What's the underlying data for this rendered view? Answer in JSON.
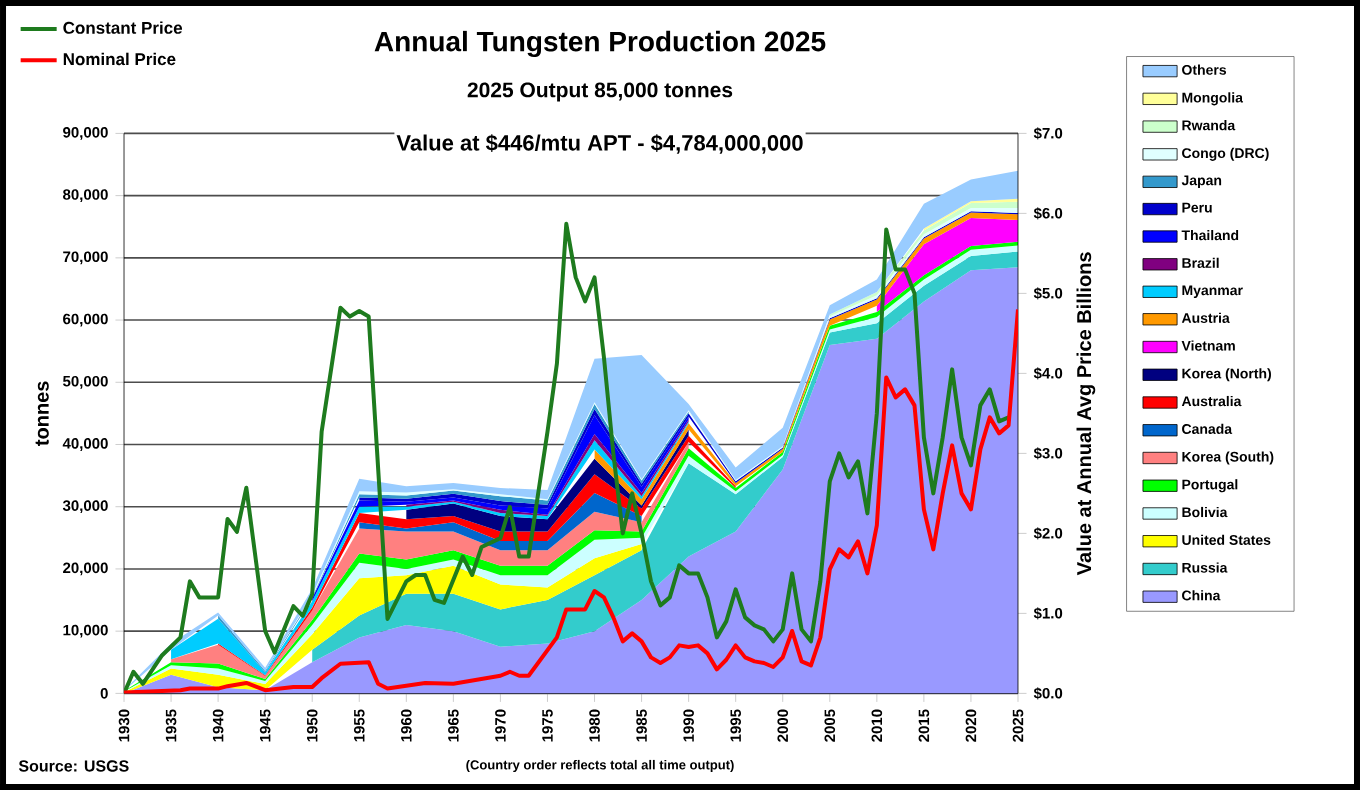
{
  "chart_data": {
    "type": "area",
    "stacked": true,
    "title": "Annual Tungsten Production 2025",
    "subtitle": "2025 Output 85,000 tonnes",
    "ylabel": "tonnes",
    "y2label": "Value at Annual Avg Price     Billions",
    "annotations": [
      "Value at $446/mtu APT  -  $4,784,000,000",
      "Source: USGS",
      "(Country order reflects total all time output)"
    ],
    "x": [
      1930,
      1935,
      1940,
      1945,
      1950,
      1955,
      1960,
      1965,
      1970,
      1975,
      1980,
      1985,
      1990,
      1995,
      2000,
      2005,
      2010,
      2015,
      2020,
      2025
    ],
    "xlim": [
      1930,
      2025
    ],
    "xticks": [
      1930,
      1935,
      1940,
      1945,
      1950,
      1955,
      1960,
      1965,
      1970,
      1975,
      1980,
      1985,
      1990,
      1995,
      2000,
      2005,
      2010,
      2015,
      2020,
      2025
    ],
    "ylim": [
      0,
      90000
    ],
    "yticks": [
      {
        "value": 0,
        "label": "0"
      },
      {
        "value": 10000,
        "label": "10,000"
      },
      {
        "value": 20000,
        "label": "20,000"
      },
      {
        "value": 30000,
        "label": "30,000"
      },
      {
        "value": 40000,
        "label": "40,000"
      },
      {
        "value": 50000,
        "label": "50,000"
      },
      {
        "value": 60000,
        "label": "60,000"
      },
      {
        "value": 70000,
        "label": "70,000"
      },
      {
        "value": 80000,
        "label": "80,000"
      },
      {
        "value": 90000,
        "label": "90,000"
      }
    ],
    "y2lim": [
      0,
      7
    ],
    "y2ticks": [
      {
        "value": 0,
        "label": "$0.0"
      },
      {
        "value": 1,
        "label": "$1.0"
      },
      {
        "value": 2,
        "label": "$2.0"
      },
      {
        "value": 3,
        "label": "$3.0"
      },
      {
        "value": 4,
        "label": "$4.0"
      },
      {
        "value": 5,
        "label": "$5.0"
      },
      {
        "value": 6,
        "label": "$6.0"
      },
      {
        "value": 7,
        "label": "$7.0"
      }
    ],
    "grid": "y",
    "legend": "right",
    "series": [
      {
        "name": "China",
        "color": "#9999ff",
        "values": [
          0,
          3000,
          1000,
          500,
          5000,
          9000,
          11000,
          10000,
          7500,
          8000,
          10000,
          15000,
          22000,
          26000,
          36000,
          56000,
          57000,
          63000,
          68000,
          68500
        ]
      },
      {
        "name": "Russia",
        "color": "#33cccc",
        "values": [
          null,
          null,
          null,
          null,
          2000,
          3500,
          5000,
          6000,
          6000,
          7000,
          9000,
          8000,
          15000,
          6000,
          2000,
          2000,
          2500,
          2500,
          2300,
          2500
        ]
      },
      {
        "name": "United States",
        "color": "#ffff00",
        "values": [
          200,
          1000,
          2000,
          1000,
          2500,
          6000,
          3000,
          4500,
          4000,
          2000,
          2700,
          1000,
          null,
          null,
          null,
          null,
          null,
          null,
          null,
          null
        ]
      },
      {
        "name": "Bolivia",
        "color": "#ccffff",
        "values": [
          100,
          500,
          1000,
          500,
          1500,
          2500,
          1000,
          1000,
          1500,
          2000,
          3000,
          1000,
          1200,
          500,
          300,
          500,
          1000,
          1000,
          1000,
          1000
        ]
      },
      {
        "name": "Portugal",
        "color": "#00ff00",
        "values": [
          100,
          500,
          800,
          300,
          800,
          1500,
          1500,
          1500,
          1500,
          1500,
          1500,
          1000,
          1200,
          500,
          500,
          600,
          800,
          700,
          600,
          600
        ]
      },
      {
        "name": "Korea (South)",
        "color": "#ff8080",
        "values": [
          null,
          500,
          3000,
          500,
          1500,
          4000,
          4500,
          3000,
          2500,
          2500,
          3000,
          1500,
          1000,
          null,
          null,
          null,
          null,
          null,
          null,
          null
        ]
      },
      {
        "name": "Canada",
        "color": "#0066cc",
        "values": [
          null,
          null,
          null,
          null,
          null,
          1000,
          500,
          1500,
          1500,
          1500,
          3000,
          1000,
          null,
          null,
          null,
          null,
          null,
          null,
          null,
          null
        ]
      },
      {
        "name": "Australia",
        "color": "#ff0000",
        "values": [
          null,
          null,
          200,
          100,
          500,
          1500,
          1500,
          1000,
          1500,
          1500,
          3000,
          1200,
          1000,
          300,
          null,
          null,
          null,
          null,
          null,
          null
        ]
      },
      {
        "name": "Korea (North)",
        "color": "#000080",
        "values": [
          null,
          null,
          null,
          null,
          null,
          null,
          1500,
          2000,
          2500,
          2000,
          2500,
          500,
          1000,
          null,
          null,
          null,
          null,
          null,
          null,
          null
        ]
      },
      {
        "name": "Vietnam",
        "color": "#ff00ff",
        "values": [
          null,
          null,
          null,
          null,
          null,
          null,
          null,
          null,
          null,
          null,
          null,
          null,
          null,
          null,
          null,
          null,
          1000,
          5000,
          4500,
          3500
        ]
      },
      {
        "name": "Austria",
        "color": "#ff9900",
        "values": [
          null,
          null,
          null,
          null,
          null,
          null,
          null,
          null,
          null,
          null,
          1500,
          1000,
          1000,
          500,
          500,
          1000,
          1000,
          900,
          900,
          900
        ]
      },
      {
        "name": "Myanmar",
        "color": "#00ccff",
        "values": [
          null,
          1500,
          4000,
          500,
          1000,
          1000,
          500,
          300,
          500,
          500,
          1500,
          500,
          300,
          null,
          null,
          null,
          null,
          null,
          null,
          null
        ]
      },
      {
        "name": "Brazil",
        "color": "#800080",
        "values": [
          null,
          null,
          null,
          null,
          null,
          null,
          300,
          200,
          500,
          200,
          1000,
          500,
          300,
          null,
          null,
          null,
          null,
          null,
          null,
          null
        ]
      },
      {
        "name": "Thailand",
        "color": "#0000ff",
        "values": [
          null,
          null,
          null,
          null,
          500,
          1000,
          500,
          500,
          700,
          1000,
          3000,
          1000,
          500,
          null,
          null,
          null,
          null,
          null,
          null,
          null
        ]
      },
      {
        "name": "Peru",
        "color": "#0000cc",
        "values": [
          null,
          null,
          null,
          null,
          null,
          500,
          500,
          600,
          700,
          600,
          1000,
          500,
          500,
          300,
          200,
          200,
          200,
          200,
          200,
          200
        ]
      },
      {
        "name": "Japan",
        "color": "#3399cc",
        "values": [
          null,
          null,
          500,
          200,
          200,
          500,
          500,
          500,
          800,
          700,
          800,
          500,
          300,
          null,
          null,
          null,
          null,
          null,
          null,
          null
        ]
      },
      {
        "name": "Congo (DRC)",
        "color": "#e0ffff",
        "values": [
          null,
          null,
          null,
          null,
          300,
          500,
          500,
          200,
          300,
          200,
          300,
          200,
          200,
          200,
          200,
          300,
          500,
          500,
          500,
          800
        ]
      },
      {
        "name": "Rwanda",
        "color": "#ccffcc",
        "values": [
          null,
          null,
          null,
          null,
          null,
          null,
          null,
          null,
          null,
          null,
          null,
          null,
          null,
          null,
          null,
          300,
          500,
          600,
          800,
          1000
        ]
      },
      {
        "name": "Mongolia",
        "color": "#ffff99",
        "values": [
          null,
          null,
          null,
          null,
          null,
          null,
          null,
          null,
          null,
          null,
          null,
          null,
          null,
          null,
          null,
          null,
          null,
          300,
          300,
          500
        ]
      },
      {
        "name": "Others",
        "color": "#99ccff",
        "values": [
          100,
          1000,
          500,
          500,
          1000,
          2000,
          1000,
          1000,
          1000,
          1500,
          7000,
          20000,
          1000,
          2000,
          3000,
          1500,
          2000,
          4000,
          3500,
          4500
        ]
      },
      {
        "name": "Constant Price",
        "type": "line",
        "axis": "y2",
        "color": "#1e7b1e",
        "x": [
          1930,
          1931,
          1932,
          1934,
          1936,
          1937,
          1938,
          1940,
          1941,
          1942,
          1943,
          1945,
          1946,
          1948,
          1949,
          1950,
          1951,
          1953,
          1954,
          1955,
          1956,
          1958,
          1960,
          1961,
          1962,
          1963,
          1964,
          1966,
          1967,
          1968,
          1970,
          1971,
          1972,
          1973,
          1975,
          1976,
          1977,
          1978,
          1979,
          1980,
          1981,
          1982,
          1983,
          1984,
          1985,
          1986,
          1987,
          1988,
          1989,
          1990,
          1991,
          1992,
          1993,
          1994,
          1995,
          1996,
          1997,
          1998,
          1999,
          2000,
          2001,
          2002,
          2003,
          2004,
          2005,
          2006,
          2007,
          2008,
          2009,
          2010,
          2011,
          2012,
          2013,
          2014,
          2015,
          2016,
          2017,
          2018,
          2019,
          2020,
          2021,
          2022,
          2023,
          2024
        ],
        "values": [
          0,
          0.27,
          0.12,
          0.47,
          0.7,
          1.4,
          1.2,
          1.2,
          2.18,
          2.02,
          2.57,
          0.78,
          0.51,
          1.09,
          0.97,
          1.24,
          3.27,
          4.82,
          4.71,
          4.78,
          4.71,
          0.93,
          1.4,
          1.48,
          1.48,
          1.17,
          1.13,
          1.71,
          1.48,
          1.83,
          1.94,
          2.33,
          1.71,
          1.71,
          3.27,
          4.12,
          5.87,
          5.2,
          4.9,
          5.2,
          4.2,
          3.0,
          2.0,
          2.5,
          2.0,
          1.4,
          1.1,
          1.2,
          1.6,
          1.5,
          1.5,
          1.2,
          0.7,
          0.9,
          1.3,
          0.95,
          0.85,
          0.8,
          0.65,
          0.8,
          1.5,
          0.8,
          0.65,
          1.4,
          2.65,
          3.0,
          2.7,
          2.9,
          2.25,
          3.5,
          5.8,
          5.3,
          5.3,
          5.0,
          3.2,
          2.5,
          3.2,
          4.05,
          3.2,
          2.85,
          3.6,
          3.8,
          3.4,
          3.45
        ]
      },
      {
        "name": "Nominal Price",
        "type": "line",
        "axis": "y2",
        "color": "#ff0000",
        "x": [
          1930,
          1936,
          1937,
          1940,
          1941,
          1943,
          1945,
          1948,
          1950,
          1951,
          1953,
          1956,
          1957,
          1958,
          1962,
          1965,
          1970,
          1971,
          1972,
          1973,
          1976,
          1977,
          1978,
          1979,
          1980,
          1981,
          1982,
          1983,
          1984,
          1985,
          1986,
          1987,
          1988,
          1989,
          1990,
          1991,
          1992,
          1993,
          1994,
          1995,
          1996,
          1997,
          1998,
          1999,
          2000,
          2001,
          2002,
          2003,
          2004,
          2005,
          2006,
          2007,
          2008,
          2009,
          2010,
          2011,
          2012,
          2013,
          2014,
          2015,
          2016,
          2017,
          2018,
          2019,
          2020,
          2021,
          2022,
          2023,
          2024,
          2025
        ],
        "values": [
          0.01,
          0.04,
          0.06,
          0.06,
          0.09,
          0.13,
          0.04,
          0.08,
          0.08,
          0.19,
          0.37,
          0.39,
          0.12,
          0.06,
          0.13,
          0.12,
          0.22,
          0.27,
          0.22,
          0.22,
          0.7,
          1.05,
          1.05,
          1.05,
          1.28,
          1.2,
          0.95,
          0.65,
          0.75,
          0.65,
          0.45,
          0.38,
          0.45,
          0.6,
          0.58,
          0.6,
          0.5,
          0.3,
          0.42,
          0.6,
          0.45,
          0.4,
          0.38,
          0.33,
          0.45,
          0.78,
          0.4,
          0.35,
          0.7,
          1.55,
          1.8,
          1.7,
          1.9,
          1.5,
          2.1,
          3.95,
          3.7,
          3.8,
          3.6,
          2.3,
          1.8,
          2.5,
          3.1,
          2.5,
          2.3,
          3.05,
          3.45,
          3.25,
          3.35,
          4.8
        ]
      }
    ]
  }
}
